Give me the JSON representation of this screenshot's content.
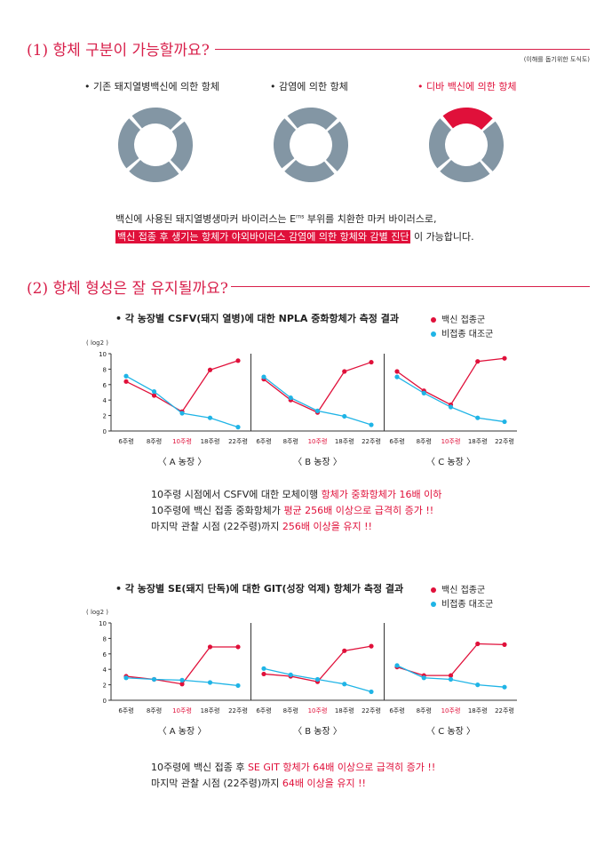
{
  "section1": {
    "title": "(1) 항체 구분이 가능할까요?",
    "note": "(이해를 돕기위한 도식도)",
    "donuts": [
      {
        "label": "• 기존 돼지열병백신에 의한 항체",
        "highlight": false
      },
      {
        "label": "• 감염에 의한 항체",
        "highlight": false
      },
      {
        "label": "• 디바 백신에 의한 항체",
        "highlight": true
      }
    ],
    "desc_line1": "백신에 사용된 돼지열병생마커 바이러스는 E",
    "desc_sup": "rns",
    "desc_line1_end": " 부위를 치환한 마커 바이러스로,",
    "desc_highlight": "백신 접종 후 생기는 항체가 야외바이러스 감염에 의한 항체와 감별 진단",
    "desc_line2_end": " 이 가능합니다."
  },
  "section2": {
    "title": "(2) 항체 형성은 잘 유지될까요?"
  },
  "colors": {
    "red": "#e0103a",
    "blue": "#1fb4e6",
    "donut_gray": "#8396a4"
  },
  "legend": {
    "vaccine": "백신 접종군",
    "control": "비접종 대조군"
  },
  "chart1_title": "• 각 농장별 CSFV(돼지 열병)에 대한 NPLA 중화항체가 측정 결과",
  "chart2_title": "• 각 농장별 SE(돼지 단독)에 대한 GIT(성장 억제) 항체가 측정 결과",
  "summary1": {
    "l1a": "10주령 시점에서 CSFV에 대한 모체이행 ",
    "l1b": "항체가 중화항체가 16배 이하",
    "l2a": "10주령에 백신 접종 중화항체가 ",
    "l2b": "평균 256배 이상으로 급격히 증가 !!",
    "l3a": "마지막 관찰 시점 (22주령)까지 ",
    "l3b": "256배 이상을 유지 !!"
  },
  "summary2": {
    "l1a": "10주령에 백신 접종 후 ",
    "l1b": "SE GIT 항체가 64배 이상으로 급격히 증가 !!",
    "l2a": "마지막 관찰 시점 (22주령)까지 ",
    "l2b": "64배 이상을 유지 !!"
  },
  "chart_data": [
    {
      "type": "line",
      "title": "• 각 농장별 CSFV(돼지 열병)에 대한 NPLA 중화항체가 측정 결과",
      "ylabel": "( log2 )",
      "ylim": [
        0,
        10
      ],
      "yticks": [
        0,
        2,
        4,
        6,
        8,
        10
      ],
      "categories": [
        "6주령",
        "8주령",
        "10주령",
        "18주령",
        "22주령"
      ],
      "highlight_category": "10주령",
      "legend_position": "top-right",
      "panels": [
        {
          "name": "〈 A 농장 〉",
          "series": [
            {
              "name": "백신 접종군",
              "values": [
                6.4,
                4.6,
                2.5,
                7.9,
                9.1
              ]
            },
            {
              "name": "비접종 대조군",
              "values": [
                7.1,
                5.1,
                2.3,
                1.7,
                0.5
              ]
            }
          ]
        },
        {
          "name": "〈 B 농장 〉",
          "series": [
            {
              "name": "백신 접종군",
              "values": [
                6.7,
                4.0,
                2.4,
                7.7,
                8.9
              ]
            },
            {
              "name": "비접종 대조군",
              "values": [
                7.0,
                4.3,
                2.6,
                1.9,
                0.8
              ]
            }
          ]
        },
        {
          "name": "〈 C 농장 〉",
          "series": [
            {
              "name": "백신 접종군",
              "values": [
                7.7,
                5.2,
                3.4,
                9.0,
                9.4
              ]
            },
            {
              "name": "비접종 대조군",
              "values": [
                7.0,
                4.9,
                3.1,
                1.7,
                1.2
              ]
            }
          ]
        }
      ]
    },
    {
      "type": "line",
      "title": "• 각 농장별 SE(돼지 단독)에 대한 GIT(성장 억제) 항체가 측정 결과",
      "ylabel": "( log2 )",
      "ylim": [
        0,
        10
      ],
      "yticks": [
        0,
        2,
        4,
        6,
        8,
        10
      ],
      "categories": [
        "6주령",
        "8주령",
        "10주령",
        "18주령",
        "22주령"
      ],
      "highlight_category": "10주령",
      "legend_position": "top-right",
      "panels": [
        {
          "name": "〈 A 농장 〉",
          "series": [
            {
              "name": "백신 접종군",
              "values": [
                3.1,
                2.7,
                2.1,
                6.9,
                6.9
              ]
            },
            {
              "name": "비접종 대조군",
              "values": [
                2.9,
                2.7,
                2.6,
                2.3,
                1.9
              ]
            }
          ]
        },
        {
          "name": "〈 B 농장 〉",
          "series": [
            {
              "name": "백신 접종군",
              "values": [
                3.4,
                3.1,
                2.4,
                6.4,
                7.0
              ]
            },
            {
              "name": "비접종 대조군",
              "values": [
                4.1,
                3.3,
                2.7,
                2.1,
                1.1
              ]
            }
          ]
        },
        {
          "name": "〈 C 농장 〉",
          "series": [
            {
              "name": "백신 접종군",
              "values": [
                4.3,
                3.2,
                3.2,
                7.3,
                7.2
              ]
            },
            {
              "name": "비접종 대조군",
              "values": [
                4.5,
                2.9,
                2.7,
                2.0,
                1.7
              ]
            }
          ]
        }
      ]
    }
  ]
}
